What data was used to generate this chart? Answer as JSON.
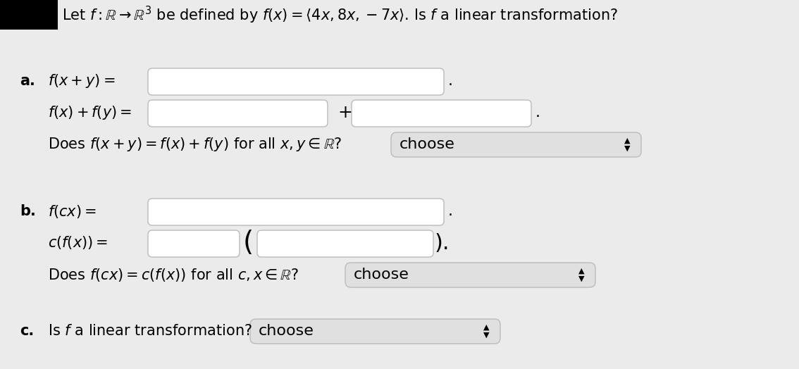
{
  "bg_color": "#ebebeb",
  "title_text": "Let $f : \\mathbb{R} \\to \\mathbb{R}^3$ be defined by $f(x) = \\langle 4x, 8x, -7x\\rangle$. Is $f$ a linear transformation?",
  "input_box_color": "#ffffff",
  "input_border_color": "#bbbbbb",
  "choose_bg_top": "#f0f0f0",
  "choose_bg_bot": "#d8d8d8",
  "choose_border": "#bbbbbb",
  "label_a": "a.",
  "label_b": "b.",
  "label_c": "c.",
  "line1_label": "$f(x + y) =$",
  "line2_label": "$f(x) + f(y) =$",
  "line3_label": "Does $f(x + y) = f(x) + f(y)$ for all $x, y \\in \\mathbb{R}$?",
  "line4_label": "$f(cx) =$",
  "line5_label": "$c(f(x)) =$",
  "line6_label": "Does $f(cx) = c(f(x))$ for all $c, x \\in \\mathbb{R}$?",
  "line7_label": "Is $f$ a linear transformation?",
  "choose_text": "choose",
  "plus_text": "+",
  "dot_text": ".",
  "paren_open": "(",
  "paren_close": ").",
  "font_size_title": 15,
  "font_size_body": 15,
  "font_size_choose": 16,
  "font_size_arrow": 8
}
